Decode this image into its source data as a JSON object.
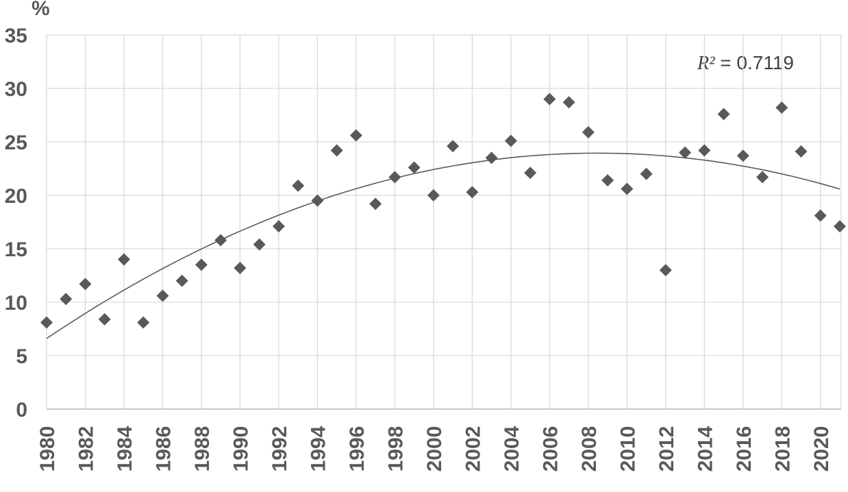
{
  "chart_data": {
    "type": "scatter",
    "title": "",
    "xlabel": "",
    "ylabel": "%",
    "legend": "none",
    "grid": true,
    "marker_shape": "diamond",
    "x": [
      1980,
      1981,
      1982,
      1983,
      1984,
      1985,
      1986,
      1987,
      1988,
      1989,
      1990,
      1991,
      1992,
      1993,
      1994,
      1995,
      1996,
      1997,
      1998,
      1999,
      2000,
      2001,
      2002,
      2003,
      2004,
      2005,
      2006,
      2007,
      2008,
      2009,
      2010,
      2011,
      2012,
      2013,
      2014,
      2015,
      2016,
      2017,
      2018,
      2019,
      2020,
      2021
    ],
    "y": [
      8.1,
      10.3,
      11.7,
      8.4,
      14.0,
      8.1,
      10.6,
      12.0,
      13.5,
      15.8,
      13.2,
      15.4,
      17.1,
      20.9,
      19.5,
      24.2,
      25.6,
      19.2,
      21.7,
      22.6,
      20.0,
      24.6,
      20.3,
      23.5,
      25.1,
      22.1,
      29.0,
      28.7,
      25.9,
      21.4,
      20.6,
      22.0,
      13.0,
      24.0,
      24.2,
      27.6,
      23.7,
      21.7,
      28.2,
      24.1,
      18.1,
      17.1
    ],
    "xlim": [
      1980,
      2021.07
    ],
    "ylim": [
      0,
      35
    ],
    "x_tick_labels": [
      "1980",
      "1982",
      "1984",
      "1986",
      "1988",
      "1990",
      "1992",
      "1994",
      "1996",
      "1998",
      "2000",
      "2002",
      "2004",
      "2006",
      "2008",
      "2010",
      "2012",
      "2014",
      "2016",
      "2018",
      "2020"
    ],
    "y_tick_labels": [
      "0",
      "5",
      "10",
      "15",
      "20",
      "25",
      "30",
      "35"
    ],
    "trendline": {
      "kind": "polynomial",
      "order": 2,
      "origin_x": 1980,
      "coefficients": {
        "a": -0.0214,
        "b": 1.2185,
        "c": 6.6
      },
      "x_start": 1980,
      "x_end": 2021,
      "r_squared_label": {
        "symbol": "R²",
        "separator": " = ",
        "value": "0.7119"
      }
    },
    "colors": {
      "marker": "#595959",
      "trendline": "#595959",
      "gridline": "#d9d9d9",
      "axis_line": "#bfbfbf",
      "tick_label": "#595959",
      "axis_title": "#595959",
      "annotation": "#3f3f3f"
    }
  }
}
